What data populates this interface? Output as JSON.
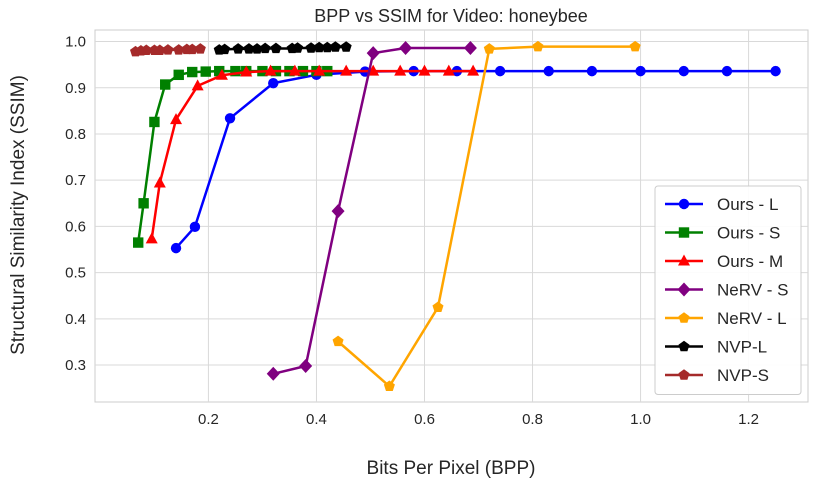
{
  "chart_data": {
    "type": "line",
    "title": "BPP vs SSIM for Video: honeybee",
    "xlabel": "Bits Per Pixel (BPP)",
    "ylabel": "Structural Similarity Index (SSIM)",
    "xlim": [
      -0.01,
      1.31
    ],
    "ylim": [
      0.22,
      1.025
    ],
    "xticks": [
      "0.2",
      "0.4",
      "0.6",
      "0.8",
      "1.0",
      "1.2"
    ],
    "yticks": [
      "0.3",
      "0.4",
      "0.5",
      "0.6",
      "0.7",
      "0.8",
      "0.9",
      "1.0"
    ],
    "grid": true,
    "legend_position": "lower right",
    "series": [
      {
        "name": "Ours - L",
        "color": "#0000ff",
        "marker": "circle",
        "x": [
          0.14,
          0.175,
          0.24,
          0.32,
          0.4,
          0.49,
          0.58,
          0.66,
          0.74,
          0.83,
          0.91,
          1.0,
          1.08,
          1.16,
          1.25
        ],
        "y": [
          0.553,
          0.599,
          0.834,
          0.91,
          0.928,
          0.935,
          0.936,
          0.936,
          0.936,
          0.936,
          0.936,
          0.936,
          0.936,
          0.936,
          0.936
        ]
      },
      {
        "name": "Ours - S",
        "color": "#008000",
        "marker": "square",
        "x": [
          0.07,
          0.08,
          0.1,
          0.12,
          0.145,
          0.17,
          0.195,
          0.22,
          0.25,
          0.27,
          0.3,
          0.325,
          0.35,
          0.375,
          0.4,
          0.42
        ],
        "y": [
          0.565,
          0.65,
          0.826,
          0.907,
          0.928,
          0.934,
          0.935,
          0.936,
          0.936,
          0.936,
          0.936,
          0.936,
          0.936,
          0.936,
          0.936,
          0.936
        ]
      },
      {
        "name": "Ours - M",
        "color": "#ff0000",
        "marker": "triangle",
        "x": [
          0.095,
          0.11,
          0.14,
          0.18,
          0.225,
          0.27,
          0.315,
          0.36,
          0.405,
          0.455,
          0.505,
          0.555,
          0.6,
          0.645,
          0.69
        ],
        "y": [
          0.573,
          0.694,
          0.831,
          0.904,
          0.927,
          0.934,
          0.936,
          0.936,
          0.936,
          0.936,
          0.936,
          0.936,
          0.936,
          0.936,
          0.936
        ]
      },
      {
        "name": "NeRV - S",
        "color": "#800080",
        "marker": "diamond",
        "x": [
          0.32,
          0.38,
          0.44,
          0.505,
          0.565,
          0.685
        ],
        "y": [
          0.281,
          0.298,
          0.633,
          0.975,
          0.986,
          0.986
        ]
      },
      {
        "name": "NeRV - L",
        "color": "#ffa500",
        "marker": "pentagon",
        "x": [
          0.44,
          0.535,
          0.625,
          0.72,
          0.81,
          0.99
        ],
        "y": [
          0.351,
          0.254,
          0.425,
          0.984,
          0.989,
          0.989
        ]
      },
      {
        "name": "NVP-L",
        "color": "#000000",
        "marker": "pentagon",
        "x": [
          0.22,
          0.23,
          0.255,
          0.275,
          0.29,
          0.305,
          0.325,
          0.355,
          0.365,
          0.39,
          0.405,
          0.42,
          0.435,
          0.455
        ],
        "y": [
          0.982,
          0.983,
          0.984,
          0.984,
          0.984,
          0.985,
          0.985,
          0.985,
          0.986,
          0.986,
          0.987,
          0.987,
          0.988,
          0.988
        ]
      },
      {
        "name": "NVP-S",
        "color": "#a52a2a",
        "marker": "pentagon",
        "x": [
          0.065,
          0.075,
          0.085,
          0.1,
          0.11,
          0.125,
          0.145,
          0.16,
          0.17,
          0.185
        ],
        "y": [
          0.978,
          0.98,
          0.981,
          0.981,
          0.981,
          0.982,
          0.982,
          0.983,
          0.983,
          0.984
        ]
      }
    ]
  }
}
